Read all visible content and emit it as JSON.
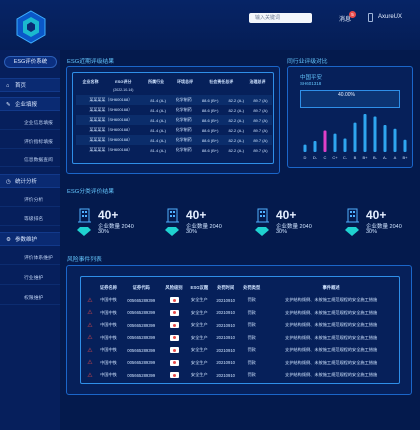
{
  "header": {
    "search_placeholder": "输入关键词",
    "message_label": "消息",
    "message_count": "5",
    "user_name": "AxureUX"
  },
  "sidebar": {
    "system_title": "ESG评价系统",
    "items": [
      {
        "label": "首页",
        "icon": "home-icon"
      },
      {
        "label": "企业填报",
        "icon": "edit-icon"
      },
      {
        "label": "企业信息填报"
      },
      {
        "label": "评价指标填报"
      },
      {
        "label": "信息数据查阅"
      },
      {
        "label": "统计分析",
        "icon": "clock-icon"
      },
      {
        "label": "评价分析"
      },
      {
        "label": "等级排名"
      },
      {
        "label": "参数维护",
        "icon": "gear-icon"
      },
      {
        "label": "评价体系维护"
      },
      {
        "label": "行业维护"
      },
      {
        "label": "权限维护"
      }
    ]
  },
  "latest_results": {
    "title": "ESG近期评级结果",
    "headers": [
      "企业名称",
      "ESG评分",
      "所属行业",
      "环境总评",
      "社会责任总评",
      "治理总评"
    ],
    "header_sub": "(2022-10-14)",
    "rows": [
      [
        "某某某某（SH600168）",
        "81.4 (A-)",
        "化学制药",
        "88.6 (B+)",
        "82.2 (A-)",
        "89.7 (A)"
      ],
      [
        "某某某某（SH600168）",
        "81.4 (A-)",
        "化学制药",
        "88.6 (B+)",
        "82.2 (A-)",
        "89.7 (A)"
      ],
      [
        "某某某某（SH600168）",
        "81.4 (A-)",
        "化学制药",
        "88.6 (B+)",
        "82.2 (A-)",
        "89.7 (A)"
      ],
      [
        "某某某某（SH600168）",
        "81.4 (A-)",
        "化学制药",
        "88.6 (B+)",
        "82.2 (A-)",
        "89.7 (A)"
      ],
      [
        "某某某某（SH600168）",
        "81.4 (A-)",
        "化学制药",
        "88.6 (B+)",
        "82.2 (A-)",
        "89.7 (A)"
      ],
      [
        "某某某某（SH600168）",
        "81.4 (A-)",
        "化学制药",
        "88.6 (B+)",
        "82.2 (A-)",
        "89.7 (A)"
      ]
    ]
  },
  "industry_compare": {
    "title": "同行业评级对比",
    "company": "中国平安",
    "code": "SH601318",
    "value": "40.00%",
    "x_labels": [
      "D",
      "D-",
      "C",
      "C+",
      "C-",
      "B",
      "B+",
      "B-",
      "A-",
      "A",
      "B+"
    ],
    "chart_data": {
      "type": "bar",
      "categories": [
        "D",
        "D-",
        "C",
        "C+",
        "C-",
        "B",
        "B+",
        "B-",
        "A-",
        "A",
        "B+"
      ],
      "values": [
        12,
        18,
        35,
        30,
        22,
        48,
        62,
        58,
        44,
        38,
        20
      ],
      "highlight_index": 2
    }
  },
  "classification": {
    "title": "ESG分类评价结果",
    "items": [
      {
        "num": "40+",
        "count_label": "企业数量",
        "count": "2040",
        "pct": "30%"
      },
      {
        "num": "40+",
        "count_label": "企业数量",
        "count": "2040",
        "pct": "30%"
      },
      {
        "num": "40+",
        "count_label": "企业数量",
        "count": "2040",
        "pct": "30%"
      },
      {
        "num": "40+",
        "count_label": "企业数量",
        "count": "2040",
        "pct": "30%"
      }
    ]
  },
  "risk_events": {
    "title": "风险事件列表",
    "headers": [
      "证券名称",
      "证券代码",
      "风险级别",
      "ESG议题",
      "处罚时间",
      "处罚类型",
      "事件概述"
    ],
    "rows": [
      [
        "中国中铁",
        "005665289399",
        "",
        "安全生产",
        "20210910",
        "罚款",
        "支护结构倾倒、未按施工规范规程的安全施工措施"
      ],
      [
        "中国中铁",
        "005665289399",
        "",
        "安全生产",
        "20210910",
        "罚款",
        "支护结构倾倒、未按施工规范规程的安全施工措施"
      ],
      [
        "中国中铁",
        "005665289399",
        "",
        "安全生产",
        "20210910",
        "罚款",
        "支护结构倾倒、未按施工规范规程的安全施工措施"
      ],
      [
        "中国中铁",
        "005665289399",
        "",
        "安全生产",
        "20210910",
        "罚款",
        "支护结构倾倒、未按施工规范规程的安全施工措施"
      ],
      [
        "中国中铁",
        "005665289399",
        "",
        "安全生产",
        "20210910",
        "罚款",
        "支护结构倾倒、未按施工规范规程的安全施工措施"
      ],
      [
        "中国中铁",
        "005665289399",
        "",
        "安全生产",
        "20210910",
        "罚款",
        "支护结构倾倒、未按施工规范规程的安全施工措施"
      ],
      [
        "中国中铁",
        "005665289399",
        "",
        "安全生产",
        "20210910",
        "罚款",
        "支护结构倾倒、未按施工规范规程的安全施工措施"
      ]
    ]
  },
  "colors": {
    "accent": "#2f8fe8",
    "title": "#66c8ff",
    "highlight_bar": "#e040c8",
    "bar": "#2fa6f0",
    "risk_badge": "#e84a4a"
  }
}
